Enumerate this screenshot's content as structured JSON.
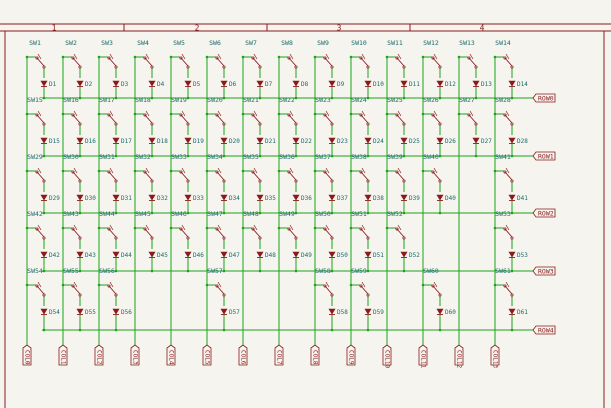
{
  "frame": {
    "column_markers": [
      "1",
      "2",
      "3",
      "4"
    ],
    "colors": {
      "frame": "#8b1a1a",
      "wire": "#1aa31a",
      "part": "#8b1a1a",
      "ref": "#1a6b6b",
      "label": "#8b1a1a",
      "paper": "#f5f4ef"
    }
  },
  "rows": [
    {
      "label": "ROW0",
      "switches": [
        "SW1",
        "SW2",
        "SW3",
        "SW4",
        "SW5",
        "SW6",
        "SW7",
        "SW8",
        "SW9",
        "SW10",
        "SW11",
        "SW12",
        "SW13",
        "SW14"
      ],
      "diodes": [
        "D1",
        "D2",
        "D3",
        "D4",
        "D5",
        "D6",
        "D7",
        "D8",
        "D9",
        "D10",
        "D11",
        "D12",
        "D13",
        "D14"
      ]
    },
    {
      "label": "ROW1",
      "switches": [
        "SW15",
        "SW16",
        "SW17",
        "SW18",
        "SW19",
        "SW20",
        "SW21",
        "SW22",
        "SW23",
        "SW24",
        "SW25",
        "SW26",
        "SW27",
        "SW28"
      ],
      "diodes": [
        "D15",
        "D16",
        "D17",
        "D18",
        "D19",
        "D20",
        "D21",
        "D22",
        "D23",
        "D24",
        "D25",
        "D26",
        "D27",
        "D28"
      ]
    },
    {
      "label": "ROW2",
      "switches": [
        "SW29",
        "SW30",
        "SW31",
        "SW32",
        "SW33",
        "SW34",
        "SW35",
        "SW36",
        "SW37",
        "SW38",
        "SW39",
        "SW40",
        "",
        "SW41"
      ],
      "diodes": [
        "D29",
        "D30",
        "D31",
        "D32",
        "D33",
        "D34",
        "D35",
        "D36",
        "D37",
        "D38",
        "D39",
        "D40",
        "",
        "D41"
      ]
    },
    {
      "label": "ROW3",
      "switches": [
        "SW42",
        "SW43",
        "SW44",
        "SW45",
        "SW46",
        "SW47",
        "SW48",
        "SW49",
        "SW50",
        "SW51",
        "SW52",
        "",
        "",
        "SW53"
      ],
      "diodes": [
        "D42",
        "D43",
        "D44",
        "D45",
        "D46",
        "D47",
        "D48",
        "D49",
        "D50",
        "D51",
        "D52",
        "",
        "",
        "D53"
      ]
    },
    {
      "label": "ROW4",
      "switches": [
        "SW54",
        "SW55",
        "SW56",
        "",
        "",
        "SW57",
        "",
        "",
        "SW58",
        "SW59",
        "",
        "SW60",
        "",
        "SW61"
      ],
      "diodes": [
        "D54",
        "D55",
        "D56",
        "",
        "",
        "D57",
        "",
        "",
        "D58",
        "D59",
        "",
        "D60",
        "",
        "D61"
      ]
    }
  ],
  "columns": [
    "COL0",
    "COL1",
    "COL2",
    "COL3",
    "COL4",
    "COL5",
    "COL6",
    "COL7",
    "COL8",
    "COL9",
    "COL10",
    "COL11",
    "COL12",
    "COL13"
  ]
}
